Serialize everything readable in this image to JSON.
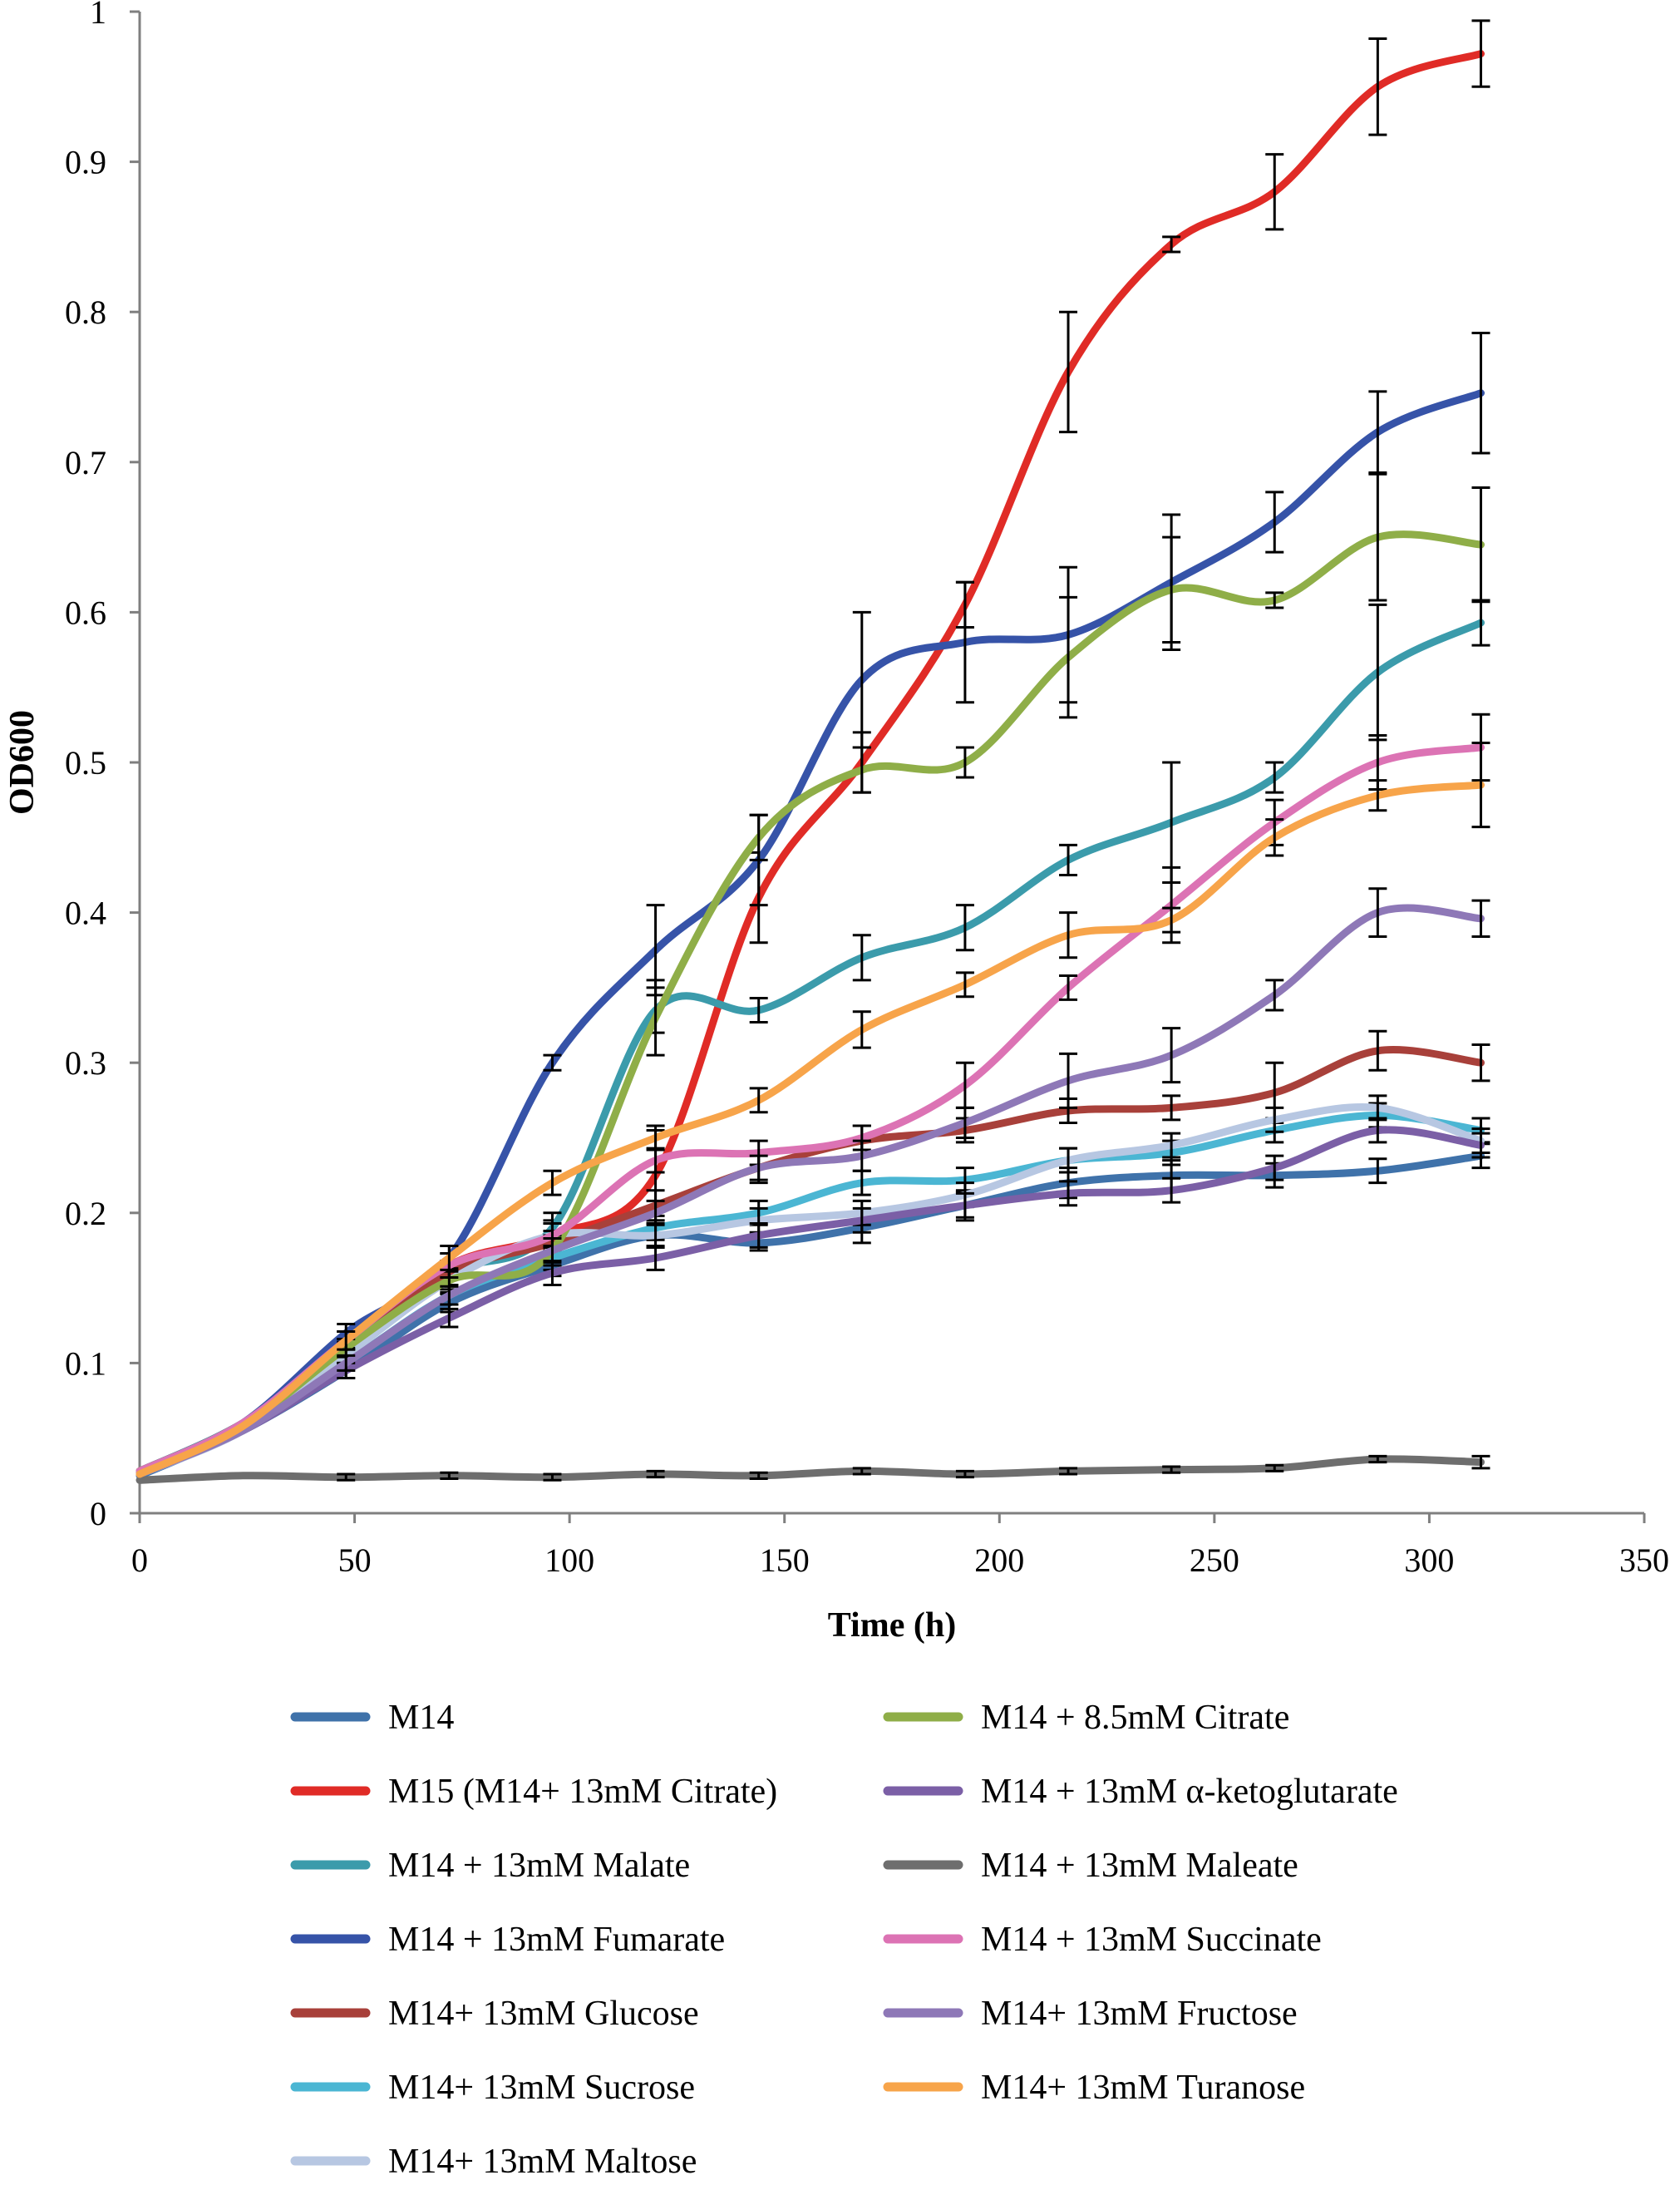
{
  "chart_data": {
    "type": "line",
    "title": "",
    "xlabel": "Time (h)",
    "ylabel": "OD600",
    "xlim": [
      0,
      350
    ],
    "ylim": [
      0,
      1
    ],
    "x_ticks": [
      0,
      50,
      100,
      150,
      200,
      250,
      300,
      350
    ],
    "y_ticks": [
      0,
      0.1,
      0.2,
      0.3,
      0.4,
      0.5,
      0.6,
      0.7,
      0.8,
      0.9,
      1
    ],
    "y_tick_labels": [
      "0",
      "0.1",
      "0.2",
      "0.3",
      "0.4",
      "0.5",
      "0.6",
      "0.7",
      "0.8",
      "0.9",
      "1"
    ],
    "grid": false,
    "legend_position": "bottom",
    "x": [
      0,
      24,
      48,
      72,
      96,
      120,
      144,
      168,
      192,
      216,
      240,
      264,
      288,
      312
    ],
    "series": [
      {
        "name": "M14",
        "color": "#3F72AA",
        "values": [
          0.025,
          0.055,
          0.095,
          0.14,
          0.165,
          0.185,
          0.18,
          0.19,
          0.205,
          0.22,
          0.225,
          0.225,
          0.228,
          0.238
        ],
        "errors": [
          0.003,
          0.004,
          0.005,
          0.006,
          0.007,
          0.008,
          0.005,
          0.01,
          0.01,
          0.01,
          0.01,
          0.008,
          0.008,
          0.008
        ]
      },
      {
        "name": "M15 (M14+ 13mM Citrate)",
        "color": "#E02B26",
        "values": [
          0.028,
          0.06,
          0.11,
          0.165,
          0.185,
          0.225,
          0.41,
          0.5,
          0.605,
          0.76,
          0.845,
          0.88,
          0.95,
          0.972
        ],
        "errors": [
          0.003,
          0.004,
          0.006,
          0.008,
          0.01,
          0.03,
          0.03,
          0.02,
          0.015,
          0.04,
          0.005,
          0.025,
          0.032,
          0.022
        ]
      },
      {
        "name": "M14 + 13mM Malate",
        "color": "#3B9BAB",
        "values": [
          0.028,
          0.06,
          0.11,
          0.16,
          0.19,
          0.335,
          0.335,
          0.37,
          0.39,
          0.435,
          0.46,
          0.49,
          0.56,
          0.593
        ],
        "errors": [
          0.003,
          0.004,
          0.006,
          0.008,
          0.01,
          0.015,
          0.008,
          0.015,
          0.015,
          0.01,
          0.04,
          0.01,
          0.045,
          0.015
        ]
      },
      {
        "name": "M14 + 13mM Fumarate",
        "color": "#3653A8",
        "values": [
          0.028,
          0.06,
          0.12,
          0.17,
          0.3,
          0.375,
          0.435,
          0.555,
          0.58,
          0.585,
          0.62,
          0.66,
          0.72,
          0.746
        ],
        "errors": [
          0.003,
          0.004,
          0.006,
          0.008,
          0.005,
          0.03,
          0.03,
          0.045,
          0.04,
          0.045,
          0.045,
          0.02,
          0.027,
          0.04
        ]
      },
      {
        "name": "M14+ 13mM Glucose",
        "color": "#A8403A",
        "values": [
          0.028,
          0.058,
          0.11,
          0.16,
          0.18,
          0.205,
          0.23,
          0.248,
          0.255,
          0.268,
          0.27,
          0.28,
          0.308,
          0.3
        ],
        "errors": [
          0.003,
          0.004,
          0.006,
          0.008,
          0.008,
          0.01,
          0.01,
          0.01,
          0.008,
          0.008,
          0.008,
          0.02,
          0.013,
          0.012
        ]
      },
      {
        "name": "M14+ 13mM Sucrose",
        "color": "#4BB6D3",
        "values": [
          0.026,
          0.055,
          0.1,
          0.145,
          0.17,
          0.19,
          0.2,
          0.22,
          0.222,
          0.235,
          0.24,
          0.255,
          0.265,
          0.255
        ],
        "errors": [
          0.003,
          0.004,
          0.005,
          0.006,
          0.008,
          0.008,
          0.008,
          0.008,
          0.008,
          0.008,
          0.008,
          0.008,
          0.008,
          0.008
        ]
      },
      {
        "name": "M14+ 13mM Maltose",
        "color": "#B7C7E2",
        "values": [
          0.026,
          0.055,
          0.105,
          0.155,
          0.185,
          0.185,
          0.195,
          0.2,
          0.212,
          0.235,
          0.245,
          0.262,
          0.27,
          0.248
        ],
        "errors": [
          0.003,
          0.004,
          0.005,
          0.006,
          0.008,
          0.008,
          0.008,
          0.008,
          0.008,
          0.008,
          0.008,
          0.008,
          0.008,
          0.008
        ]
      },
      {
        "name": "M14 + 8.5mM Citrate",
        "color": "#8FAE48",
        "values": [
          0.028,
          0.058,
          0.11,
          0.155,
          0.175,
          0.33,
          0.45,
          0.495,
          0.5,
          0.57,
          0.615,
          0.608,
          0.65,
          0.645
        ],
        "errors": [
          0.003,
          0.004,
          0.006,
          0.008,
          0.01,
          0.025,
          0.015,
          0.015,
          0.01,
          0.04,
          0.035,
          0.005,
          0.042,
          0.038
        ]
      },
      {
        "name": "M14 + 13mM α-ketoglutarate",
        "color": "#7B5FA6",
        "values": [
          0.026,
          0.055,
          0.095,
          0.13,
          0.16,
          0.17,
          0.185,
          0.195,
          0.205,
          0.213,
          0.215,
          0.23,
          0.255,
          0.245
        ],
        "errors": [
          0.003,
          0.004,
          0.005,
          0.006,
          0.008,
          0.008,
          0.008,
          0.008,
          0.008,
          0.008,
          0.008,
          0.008,
          0.008,
          0.008
        ]
      },
      {
        "name": "M14 + 13mM Maleate",
        "color": "#6E6E6E",
        "values": [
          0.022,
          0.025,
          0.024,
          0.025,
          0.024,
          0.026,
          0.025,
          0.028,
          0.026,
          0.028,
          0.029,
          0.03,
          0.036,
          0.034
        ],
        "errors": [
          0.002,
          0.002,
          0.002,
          0.002,
          0.002,
          0.002,
          0.002,
          0.002,
          0.002,
          0.002,
          0.002,
          0.002,
          0.002,
          0.004
        ]
      },
      {
        "name": "M14 + 13mM Succinate",
        "color": "#DC73B4",
        "values": [
          0.028,
          0.06,
          0.115,
          0.165,
          0.185,
          0.235,
          0.24,
          0.25,
          0.285,
          0.35,
          0.405,
          0.46,
          0.5,
          0.51
        ],
        "errors": [
          0.003,
          0.004,
          0.006,
          0.008,
          0.008,
          0.008,
          0.008,
          0.008,
          0.015,
          0.008,
          0.025,
          0.015,
          0.018,
          0.022
        ]
      },
      {
        "name": "M14+ 13mM Fructose",
        "color": "#8E78B7",
        "values": [
          0.026,
          0.055,
          0.1,
          0.145,
          0.175,
          0.2,
          0.23,
          0.238,
          0.26,
          0.288,
          0.305,
          0.345,
          0.4,
          0.396
        ],
        "errors": [
          0.003,
          0.004,
          0.005,
          0.006,
          0.008,
          0.008,
          0.008,
          0.01,
          0.01,
          0.018,
          0.018,
          0.01,
          0.016,
          0.012
        ]
      },
      {
        "name": "M14+ 13mM Turanose",
        "color": "#F7A44A",
        "values": [
          0.026,
          0.058,
          0.115,
          0.17,
          0.22,
          0.25,
          0.275,
          0.322,
          0.352,
          0.385,
          0.395,
          0.45,
          0.478,
          0.485
        ],
        "errors": [
          0.003,
          0.004,
          0.006,
          0.008,
          0.008,
          0.008,
          0.008,
          0.012,
          0.008,
          0.015,
          0.008,
          0.012,
          0.01,
          0.028
        ]
      }
    ],
    "legend_order": [
      0,
      7,
      1,
      8,
      2,
      9,
      3,
      10,
      4,
      11,
      5,
      12,
      6
    ]
  }
}
